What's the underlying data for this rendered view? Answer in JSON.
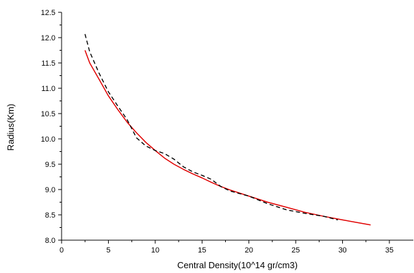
{
  "chart_data": {
    "type": "line",
    "xlabel": "Central Density(10^14 gr/cm3)",
    "ylabel": "Radius(Km)",
    "xlim": [
      0,
      37
    ],
    "ylim": [
      8.0,
      12.5
    ],
    "xticks": [
      0,
      5,
      10,
      15,
      20,
      25,
      30,
      35
    ],
    "yticks": [
      8.0,
      8.5,
      9.0,
      9.5,
      10.0,
      10.5,
      11.0,
      11.5,
      12.0,
      12.5
    ],
    "xtick_labels": [
      "0",
      "5",
      "10",
      "15",
      "20",
      "25",
      "30",
      "35"
    ],
    "ytick_labels": [
      "8.0",
      "8.5",
      "9.0",
      "9.5",
      "10.0",
      "10.5",
      "11.0",
      "11.5",
      "12.0",
      "12.5"
    ],
    "grid": false,
    "legend": "none",
    "series": [
      {
        "color": "#e00000",
        "style": "solid",
        "x": [
          2.5,
          3,
          4,
          5,
          6,
          7,
          8,
          9,
          10,
          11,
          12,
          13,
          14,
          15,
          16,
          17,
          18,
          20,
          22,
          24,
          26,
          28,
          30,
          33
        ],
        "y": [
          11.75,
          11.5,
          11.18,
          10.85,
          10.58,
          10.33,
          10.12,
          9.93,
          9.77,
          9.62,
          9.5,
          9.4,
          9.31,
          9.23,
          9.14,
          9.06,
          8.99,
          8.87,
          8.75,
          8.65,
          8.55,
          8.47,
          8.4,
          8.3
        ]
      },
      {
        "color": "#000000",
        "style": "dashed",
        "x": [
          2.5,
          3,
          4,
          5,
          6,
          7,
          8,
          9,
          10,
          11,
          12,
          13,
          14,
          15,
          16,
          17,
          18,
          20,
          22,
          24,
          26,
          28,
          29.5
        ],
        "y": [
          12.07,
          11.72,
          11.3,
          10.93,
          10.65,
          10.38,
          10.02,
          9.86,
          9.77,
          9.71,
          9.6,
          9.45,
          9.35,
          9.28,
          9.2,
          9.06,
          8.97,
          8.87,
          8.72,
          8.6,
          8.53,
          8.47,
          8.4
        ]
      }
    ]
  }
}
